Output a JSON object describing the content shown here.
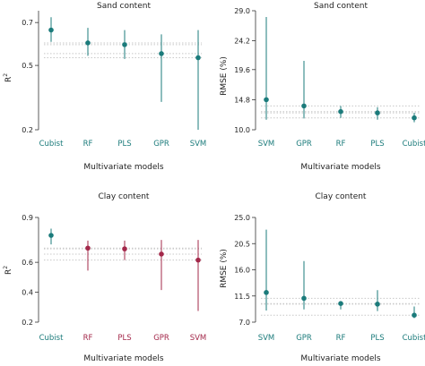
{
  "colors": {
    "teal": "#1b7b7b",
    "crimson": "#a3284a",
    "reference": "#c8c8c8",
    "axis": "#333333"
  },
  "chart_data": [
    {
      "id": "p1",
      "type": "scatter",
      "title": "Sand content",
      "xlabel": "Multivariate models",
      "ylabel": "R",
      "ylabel_sup": "2",
      "categories": [
        "Cubist",
        "RF",
        "PLS",
        "GPR",
        "SVM"
      ],
      "values": [
        0.665,
        0.605,
        0.597,
        0.555,
        0.536
      ],
      "lower": [
        0.61,
        0.545,
        0.53,
        0.33,
        0.2
      ],
      "upper": [
        0.725,
        0.675,
        0.665,
        0.645,
        0.665
      ],
      "colors": [
        "teal",
        "teal",
        "teal",
        "teal",
        "teal"
      ],
      "yticks": [
        "0.2",
        "0.5",
        "0.7"
      ],
      "ytick_values": [
        0.2,
        0.5,
        0.7
      ],
      "ylim": [
        0.2,
        0.755
      ],
      "reference_lines": [
        0.605,
        0.597,
        0.555,
        0.536
      ],
      "grid": false
    },
    {
      "id": "p2",
      "type": "scatter",
      "title": "Sand content",
      "xlabel": "Multivariate models",
      "ylabel": "RMSE (%)",
      "categories": [
        "SVM",
        "GPR",
        "RF",
        "PLS",
        "Cubist"
      ],
      "values": [
        14.8,
        13.8,
        12.9,
        12.7,
        11.9
      ],
      "lower": [
        11.6,
        11.8,
        11.9,
        11.6,
        11.2
      ],
      "upper": [
        28.0,
        21.0,
        13.8,
        13.6,
        12.7
      ],
      "colors": [
        "teal",
        "teal",
        "teal",
        "teal",
        "teal"
      ],
      "yticks": [
        "10.0",
        "14.8",
        "19.6",
        "24.2",
        "29.0"
      ],
      "ytick_values": [
        10.0,
        14.8,
        19.6,
        24.2,
        29.0
      ],
      "ylim": [
        10.0,
        29.0
      ],
      "reference_lines": [
        13.8,
        12.9,
        12.7,
        11.9
      ],
      "grid": false
    },
    {
      "id": "p3",
      "type": "scatter",
      "title": "Clay content",
      "xlabel": "Multivariate models",
      "ylabel": "R",
      "ylabel_sup": "2",
      "categories": [
        "Cubist",
        "RF",
        "PLS",
        "GPR",
        "SVM"
      ],
      "values": [
        0.78,
        0.695,
        0.69,
        0.655,
        0.615
      ],
      "lower": [
        0.72,
        0.545,
        0.615,
        0.415,
        0.275
      ],
      "upper": [
        0.825,
        0.745,
        0.745,
        0.75,
        0.75
      ],
      "colors": [
        "teal",
        "crimson",
        "crimson",
        "crimson",
        "crimson"
      ],
      "yticks": [
        "0.2",
        "0.4",
        "0.6",
        "0.9"
      ],
      "ytick_values": [
        0.2,
        0.4,
        0.6,
        0.9
      ],
      "ylim": [
        0.2,
        0.9
      ],
      "reference_lines": [
        0.695,
        0.69,
        0.655,
        0.615
      ],
      "grid": false
    },
    {
      "id": "p4",
      "type": "scatter",
      "title": "Clay content",
      "xlabel": "Multivariate models",
      "ylabel": "RMSE (%)",
      "categories": [
        "SVM",
        "GPR",
        "RF",
        "PLS",
        "Cubist"
      ],
      "values": [
        12.1,
        11.1,
        10.2,
        10.1,
        8.2
      ],
      "lower": [
        9.0,
        9.2,
        9.2,
        8.9,
        7.7
      ],
      "upper": [
        22.9,
        17.5,
        10.6,
        12.5,
        9.7
      ],
      "colors": [
        "teal",
        "teal",
        "teal",
        "teal",
        "teal"
      ],
      "yticks": [
        "7.0",
        "11.5",
        "16.0",
        "20.5",
        "25.0"
      ],
      "ytick_values": [
        7.0,
        11.5,
        16.0,
        20.5,
        25.0
      ],
      "ylim": [
        7.0,
        25.0
      ],
      "reference_lines": [
        11.1,
        10.2,
        10.1,
        8.2
      ],
      "grid": false
    }
  ]
}
